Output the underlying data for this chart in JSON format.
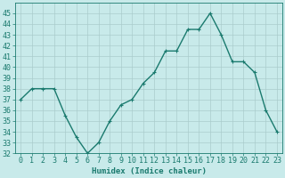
{
  "x": [
    0,
    1,
    2,
    3,
    4,
    5,
    6,
    7,
    8,
    9,
    10,
    11,
    12,
    13,
    14,
    15,
    16,
    17,
    18,
    19,
    20,
    21,
    22,
    23
  ],
  "y": [
    37,
    38,
    38,
    38,
    35.5,
    33.5,
    32,
    33,
    35,
    36.5,
    37,
    38.5,
    39.5,
    41.5,
    41.5,
    43.5,
    43.5,
    45,
    43,
    40.5,
    40.5,
    39.5,
    36,
    34
  ],
  "line_color": "#1a7a6e",
  "marker": "+",
  "marker_size": 3,
  "bg_color": "#c8eaea",
  "grid_color": "#aacccc",
  "tick_color": "#1a7a6e",
  "xlabel": "Humidex (Indice chaleur)",
  "ylim": [
    32,
    46
  ],
  "xlim": [
    -0.5,
    23.5
  ],
  "yticks": [
    32,
    33,
    34,
    35,
    36,
    37,
    38,
    39,
    40,
    41,
    42,
    43,
    44,
    45
  ],
  "xticks": [
    0,
    1,
    2,
    3,
    4,
    5,
    6,
    7,
    8,
    9,
    10,
    11,
    12,
    13,
    14,
    15,
    16,
    17,
    18,
    19,
    20,
    21,
    22,
    23
  ],
  "xlabel_fontsize": 6.5,
  "tick_fontsize": 6,
  "linewidth": 1.0
}
